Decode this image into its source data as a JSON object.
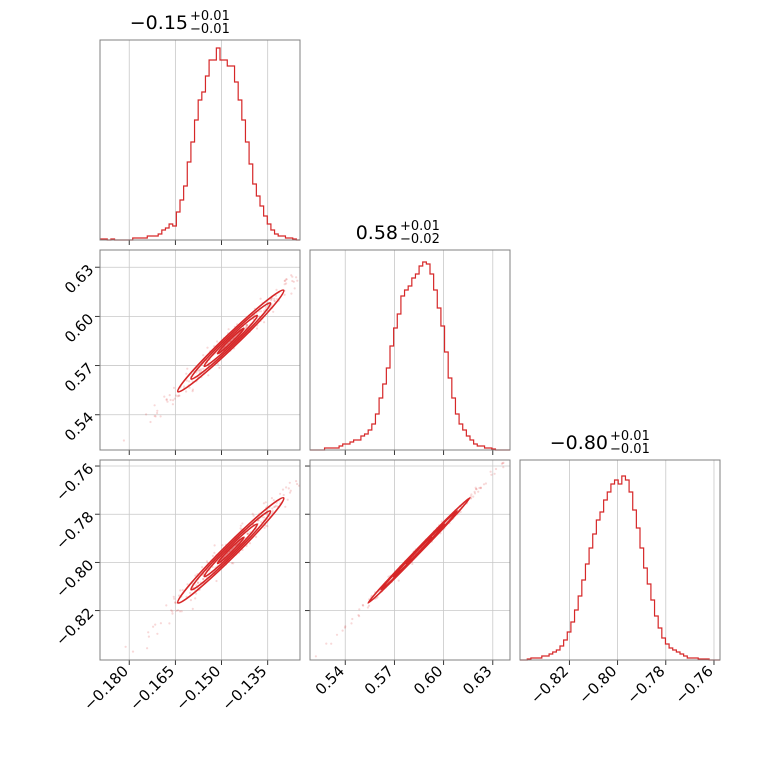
{
  "chart_data": {
    "type": "corner",
    "color": "#d62728",
    "grid": true,
    "parameters": [
      {
        "title": {
          "main": "−0.15",
          "up": "+0.01",
          "down": "−0.01"
        },
        "range": [
          -0.1895,
          -0.1245
        ],
        "ticks": [
          -0.18,
          -0.165,
          -0.15,
          -0.135
        ],
        "ticklabels": [
          "−0.180",
          "−0.165",
          "−0.150",
          "−0.135"
        ],
        "hist": [
          0.005,
          0.005,
          0.0,
          0.005,
          0.0,
          0.0,
          0.0,
          0.0,
          0.0,
          0.01,
          0.01,
          0.01,
          0.01,
          0.02,
          0.02,
          0.02,
          0.03,
          0.05,
          0.06,
          0.08,
          0.07,
          0.14,
          0.2,
          0.27,
          0.39,
          0.49,
          0.6,
          0.7,
          0.74,
          0.82,
          0.9,
          0.9,
          0.96,
          0.9,
          0.9,
          0.87,
          0.87,
          0.79,
          0.7,
          0.6,
          0.49,
          0.38,
          0.28,
          0.22,
          0.17,
          0.12,
          0.08,
          0.05,
          0.03,
          0.02,
          0.02,
          0.01,
          0.01,
          0.005,
          0.0
        ]
      },
      {
        "title": {
          "main": "0.58",
          "up": "+0.01",
          "down": "−0.02"
        },
        "range": [
          0.5185,
          0.6405
        ],
        "ticks": [
          0.54,
          0.57,
          0.6,
          0.63
        ],
        "ticklabels": [
          "0.54",
          "0.57",
          "0.60",
          "0.63"
        ],
        "hist": [
          0.0,
          0.0,
          0.0,
          0.0,
          0.01,
          0.01,
          0.01,
          0.01,
          0.02,
          0.03,
          0.03,
          0.04,
          0.05,
          0.05,
          0.07,
          0.08,
          0.1,
          0.13,
          0.18,
          0.26,
          0.33,
          0.41,
          0.52,
          0.61,
          0.68,
          0.77,
          0.8,
          0.82,
          0.86,
          0.88,
          0.92,
          0.94,
          0.93,
          0.88,
          0.8,
          0.71,
          0.62,
          0.49,
          0.36,
          0.26,
          0.18,
          0.13,
          0.1,
          0.07,
          0.05,
          0.03,
          0.02,
          0.02,
          0.01,
          0.01,
          0.005,
          0.0,
          0.0,
          0.0,
          0.0
        ]
      },
      {
        "title": {
          "main": "−0.80",
          "up": "+0.01",
          "down": "−0.01"
        },
        "range": [
          -0.8405,
          -0.7575
        ],
        "ticks": [
          -0.82,
          -0.8,
          -0.78,
          -0.76
        ],
        "ticklabels": [
          "−0.82",
          "−0.80",
          "−0.78",
          "−0.76"
        ],
        "hist": [
          0.0,
          0.0,
          0.005,
          0.01,
          0.01,
          0.01,
          0.02,
          0.02,
          0.03,
          0.04,
          0.05,
          0.07,
          0.1,
          0.14,
          0.19,
          0.25,
          0.32,
          0.4,
          0.48,
          0.56,
          0.63,
          0.7,
          0.74,
          0.8,
          0.84,
          0.88,
          0.9,
          0.88,
          0.92,
          0.9,
          0.84,
          0.75,
          0.66,
          0.56,
          0.46,
          0.38,
          0.3,
          0.22,
          0.16,
          0.11,
          0.08,
          0.06,
          0.05,
          0.04,
          0.03,
          0.02,
          0.01,
          0.01,
          0.01,
          0.005,
          0.005,
          0.005,
          0.0,
          0.0,
          0.0
        ]
      }
    ],
    "joint": [
      {
        "x_param": 0,
        "y_param": 1,
        "x_center": -0.147,
        "y_center": 0.585,
        "x_sd": 0.0075,
        "y_sd": 0.0135,
        "corr": 0.985
      },
      {
        "x_param": 0,
        "y_param": 2,
        "x_center": -0.147,
        "y_center": -0.795,
        "x_sd": 0.0075,
        "y_sd": 0.0095,
        "corr": 0.985
      },
      {
        "x_param": 1,
        "y_param": 2,
        "x_center": 0.585,
        "y_center": -0.795,
        "x_sd": 0.0135,
        "y_sd": 0.0095,
        "corr": 0.998
      }
    ],
    "contour_levels_sigma": [
      0.5,
      1.0,
      1.5,
      2.0
    ]
  }
}
